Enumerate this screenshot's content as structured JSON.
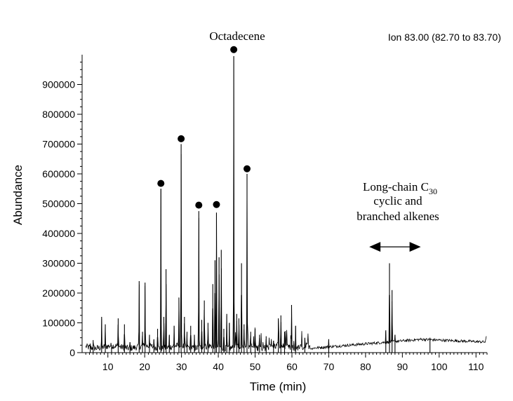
{
  "chart_data": {
    "type": "line",
    "title": "Ion 83.00 (82.70 to 83.70)",
    "xlabel": "Time (min)",
    "ylabel": "Abundance",
    "xlim": [
      3,
      113
    ],
    "ylim": [
      0,
      1000000
    ],
    "x_ticks": [
      10,
      20,
      30,
      40,
      50,
      60,
      70,
      80,
      90,
      100,
      110
    ],
    "y_ticks": [
      0,
      100000,
      200000,
      300000,
      400000,
      500000,
      600000,
      700000,
      800000,
      900000
    ],
    "grid": false,
    "legend": "none",
    "colors": {
      "trace": "#000000",
      "background": "#ffffff"
    },
    "series": [
      {
        "peaks": [
          {
            "x": 5.2,
            "y": 30000
          },
          {
            "x": 6.0,
            "y": 42000
          },
          {
            "x": 8.3,
            "y": 120000
          },
          {
            "x": 9.3,
            "y": 95000
          },
          {
            "x": 11.0,
            "y": 25000
          },
          {
            "x": 12.8,
            "y": 115000
          },
          {
            "x": 14.5,
            "y": 95000
          },
          {
            "x": 16.0,
            "y": 35000
          },
          {
            "x": 18.5,
            "y": 240000
          },
          {
            "x": 19.4,
            "y": 70000
          },
          {
            "x": 20.1,
            "y": 235000
          },
          {
            "x": 21.3,
            "y": 60000
          },
          {
            "x": 22.5,
            "y": 45000
          },
          {
            "x": 23.5,
            "y": 80000
          },
          {
            "x": 24.4,
            "y": 550000
          },
          {
            "x": 25.2,
            "y": 120000
          },
          {
            "x": 25.8,
            "y": 280000
          },
          {
            "x": 26.7,
            "y": 60000
          },
          {
            "x": 28.0,
            "y": 90000
          },
          {
            "x": 29.3,
            "y": 185000
          },
          {
            "x": 29.9,
            "y": 700000
          },
          {
            "x": 30.8,
            "y": 120000
          },
          {
            "x": 31.5,
            "y": 70000
          },
          {
            "x": 32.5,
            "y": 90000
          },
          {
            "x": 33.5,
            "y": 60000
          },
          {
            "x": 34.7,
            "y": 475000
          },
          {
            "x": 35.5,
            "y": 110000
          },
          {
            "x": 36.2,
            "y": 175000
          },
          {
            "x": 37.2,
            "y": 100000
          },
          {
            "x": 38.5,
            "y": 230000
          },
          {
            "x": 39.1,
            "y": 310000
          },
          {
            "x": 39.5,
            "y": 470000
          },
          {
            "x": 40.2,
            "y": 320000
          },
          {
            "x": 40.8,
            "y": 345000
          },
          {
            "x": 41.5,
            "y": 80000
          },
          {
            "x": 42.3,
            "y": 130000
          },
          {
            "x": 43.0,
            "y": 100000
          },
          {
            "x": 44.2,
            "y": 995000
          },
          {
            "x": 45.0,
            "y": 130000
          },
          {
            "x": 45.6,
            "y": 115000
          },
          {
            "x": 46.3,
            "y": 300000
          },
          {
            "x": 47.0,
            "y": 95000
          },
          {
            "x": 47.8,
            "y": 600000
          },
          {
            "x": 48.8,
            "y": 70000
          },
          {
            "x": 50.0,
            "y": 80000
          },
          {
            "x": 51.2,
            "y": 60000
          },
          {
            "x": 53.0,
            "y": 55000
          },
          {
            "x": 55.0,
            "y": 40000
          },
          {
            "x": 56.3,
            "y": 115000
          },
          {
            "x": 57.0,
            "y": 125000
          },
          {
            "x": 58.0,
            "y": 70000
          },
          {
            "x": 59.9,
            "y": 160000
          },
          {
            "x": 61.0,
            "y": 90000
          },
          {
            "x": 63.5,
            "y": 50000
          },
          {
            "x": 70.0,
            "y": 45000
          },
          {
            "x": 85.5,
            "y": 75000
          },
          {
            "x": 86.5,
            "y": 300000
          },
          {
            "x": 87.2,
            "y": 210000
          },
          {
            "x": 88.0,
            "y": 60000
          },
          {
            "x": 97.5,
            "y": 50000
          }
        ]
      }
    ],
    "annotations": {
      "octadecene_label": "Octadecene",
      "cluster_line1": "Long-chain C",
      "cluster_subscript": "30",
      "cluster_line2": "cyclic and",
      "cluster_line3": "branched alkenes",
      "arrow_range": [
        81,
        95
      ]
    },
    "markers": [
      {
        "x": 24.4,
        "y": 568000
      },
      {
        "x": 29.9,
        "y": 718000
      },
      {
        "x": 34.7,
        "y": 495000
      },
      {
        "x": 39.5,
        "y": 497000
      },
      {
        "x": 44.2,
        "y": 1017000
      },
      {
        "x": 47.8,
        "y": 617000
      }
    ]
  }
}
